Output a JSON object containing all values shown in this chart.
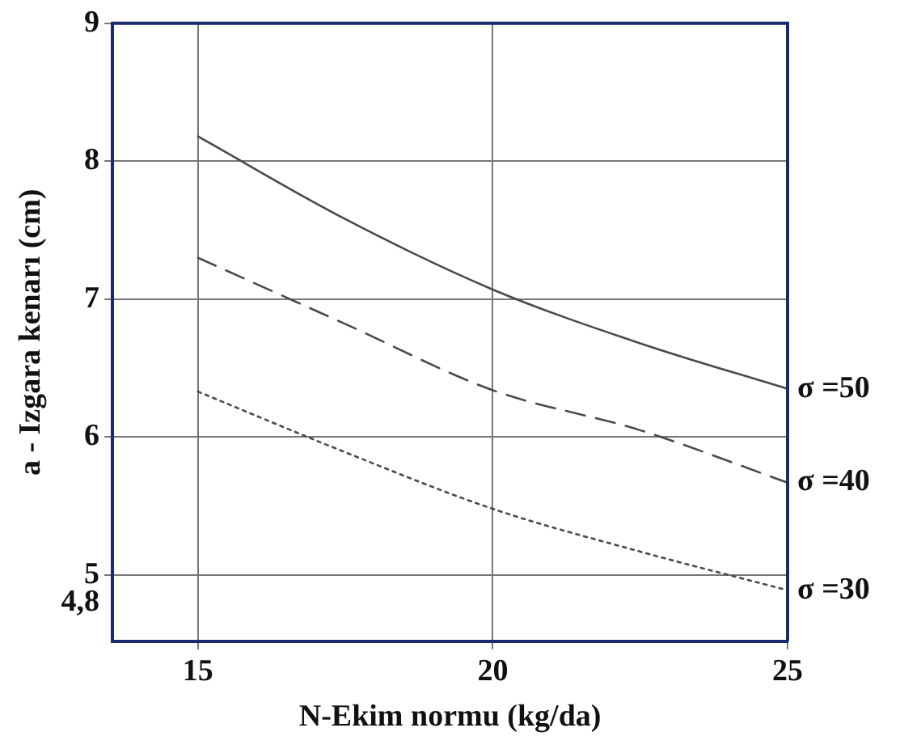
{
  "chart_data": {
    "type": "line",
    "xlabel": "N-Ekim normu (kg/da)",
    "ylabel": "a - Izgara kenarı (cm)",
    "x": [
      15,
      17.5,
      20,
      22.5,
      25
    ],
    "series": [
      {
        "name": "σ =50",
        "color": "#4a4a4a",
        "line_style": "solid",
        "values": [
          8.18,
          7.58,
          7.07,
          6.68,
          6.35
        ]
      },
      {
        "name": "σ =40",
        "color": "#4a4a4a",
        "line_style": "dashed",
        "values": [
          7.3,
          6.82,
          6.34,
          6.05,
          5.67
        ]
      },
      {
        "name": "σ =30",
        "color": "#4a4a4a",
        "line_style": "dotted",
        "values": [
          6.33,
          5.89,
          5.48,
          5.17,
          4.89
        ]
      }
    ],
    "xlim": [
      13.55,
      25
    ],
    "xticks": [
      15,
      20,
      25
    ],
    "ylim": [
      4.52,
      9
    ],
    "yticks": [
      {
        "value": 4.8,
        "label": "4,8"
      },
      5,
      6,
      7,
      8,
      9
    ],
    "grid": true,
    "legend": false,
    "marker": "none"
  }
}
